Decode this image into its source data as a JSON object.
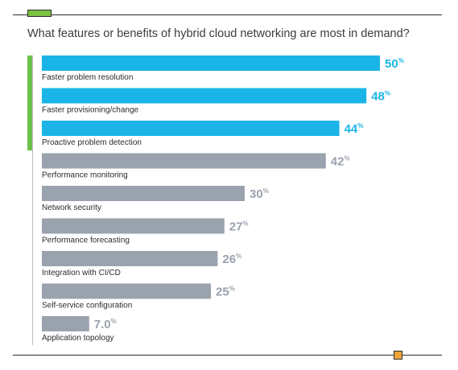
{
  "title": "What features or benefits of hybrid cloud networking are most in demand?",
  "colors": {
    "highlight": "#1ab5e6",
    "standard": "#9aa2ad",
    "accent_green": "#6cc04a",
    "accent_orange": "#f0a43a",
    "text": "#2b2b2b"
  },
  "chart_data": {
    "type": "bar",
    "orientation": "horizontal",
    "categories": [
      "Faster problem resolution",
      "Faster provisioning/change",
      "Proactive problem detection",
      "Performance monitoring",
      "Network security",
      "Performance forecasting",
      "Integration with CI/CD",
      "Self-service configuration",
      "Application topology"
    ],
    "values": [
      50,
      48,
      44,
      42,
      30,
      27,
      26,
      25,
      7.0
    ],
    "value_labels": [
      "50",
      "48",
      "44",
      "42",
      "30",
      "27",
      "26",
      "25",
      "7.0"
    ],
    "unit_suffix": "%",
    "highlighted": [
      true,
      true,
      true,
      false,
      false,
      false,
      false,
      false,
      false
    ],
    "title": "What features or benefits of hybrid cloud networking are most in demand?",
    "xlim": [
      0,
      50
    ],
    "grid": false,
    "legend": "none"
  }
}
